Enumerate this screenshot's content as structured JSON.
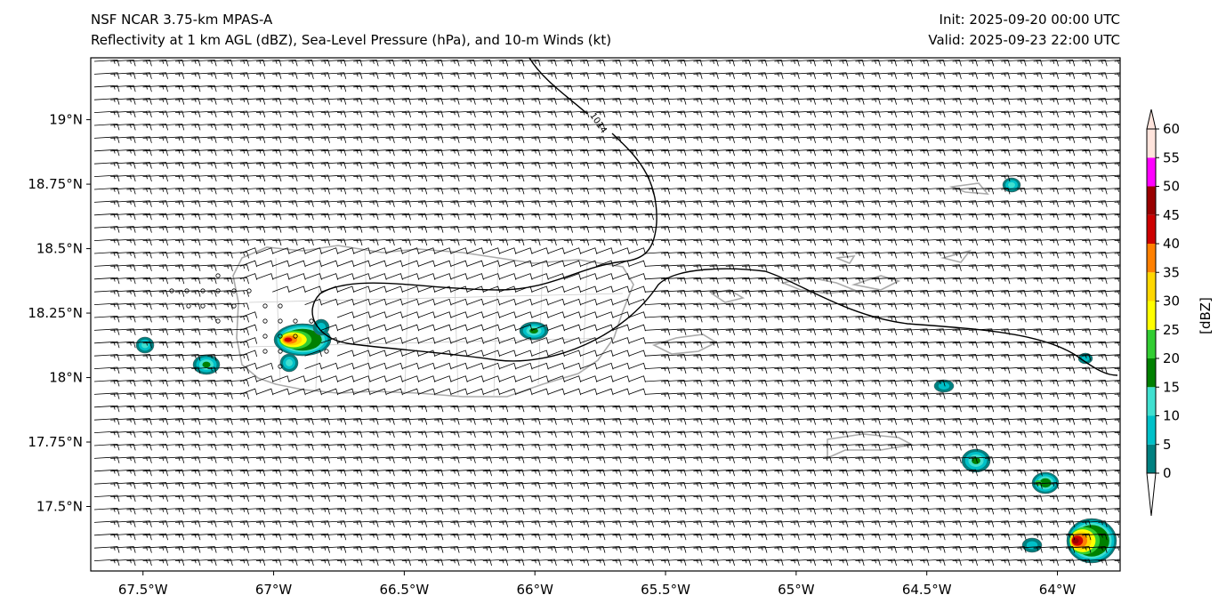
{
  "header": {
    "title": "NSF NCAR 3.75-km MPAS-A",
    "subtitle": "Reflectivity at 1 km AGL (dBZ), Sea-Level Pressure (hPa), and 10-m Winds (kt)",
    "init": "Init: 2025-09-20 00:00 UTC",
    "valid": "Valid: 2025-09-23 22:00 UTC"
  },
  "map": {
    "lon_range": [
      -67.7,
      -63.76
    ],
    "lat_range": [
      17.25,
      19.24
    ],
    "lon_ticks": [
      {
        "value": -67.5,
        "label": "67.5°W"
      },
      {
        "value": -67.0,
        "label": "67°W"
      },
      {
        "value": -66.5,
        "label": "66.5°W"
      },
      {
        "value": -66.0,
        "label": "66°W"
      },
      {
        "value": -65.5,
        "label": "65.5°W"
      },
      {
        "value": -65.0,
        "label": "65°W"
      },
      {
        "value": -64.5,
        "label": "64.5°W"
      },
      {
        "value": -64.0,
        "label": "64°W"
      }
    ],
    "lat_ticks": [
      {
        "value": 19.0,
        "label": "19°N"
      },
      {
        "value": 18.75,
        "label": "18.75°N"
      },
      {
        "value": 18.5,
        "label": "18.5°N"
      },
      {
        "value": 18.25,
        "label": "18.25°N"
      },
      {
        "value": 18.0,
        "label": "18°N"
      },
      {
        "value": 17.75,
        "label": "17.75°N"
      },
      {
        "value": 17.5,
        "label": "17.5°N"
      }
    ],
    "contour_label": "1014"
  },
  "colorbar": {
    "label": "[dBZ]",
    "levels": [
      {
        "value": 0,
        "label": "0",
        "color": "#008080"
      },
      {
        "value": 5,
        "label": "5",
        "color": "#00c0c8"
      },
      {
        "value": 10,
        "label": "10",
        "color": "#40e0d0"
      },
      {
        "value": 15,
        "label": "15",
        "color": "#008000"
      },
      {
        "value": 20,
        "label": "20",
        "color": "#32cd32"
      },
      {
        "value": 25,
        "label": "25",
        "color": "#ffff00"
      },
      {
        "value": 30,
        "label": "30",
        "color": "#ffd700"
      },
      {
        "value": 35,
        "label": "35",
        "color": "#ff8000"
      },
      {
        "value": 40,
        "label": "40",
        "color": "#cc0000"
      },
      {
        "value": 45,
        "label": "45",
        "color": "#990000"
      },
      {
        "value": 50,
        "label": "50",
        "color": "#ff00ff"
      },
      {
        "value": 55,
        "label": "55",
        "color": "#ffe4dc"
      },
      {
        "value": 60,
        "label": "60",
        "color": null
      }
    ]
  }
}
